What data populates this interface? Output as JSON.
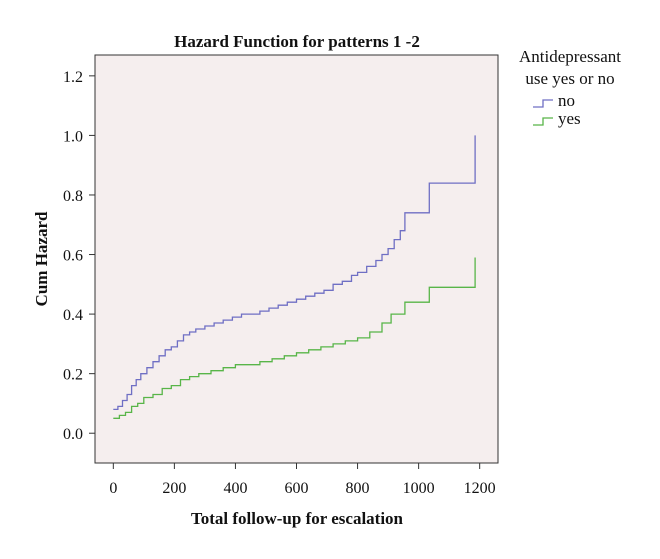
{
  "chart_data": {
    "type": "line",
    "title": "Hazard Function for patterns 1 -2",
    "xlabel": "Total follow-up for escalation",
    "ylabel": "Cum Hazard",
    "xlim": [
      -60,
      1260
    ],
    "ylim": [
      -0.1,
      1.27
    ],
    "xticks": [
      0,
      200,
      400,
      600,
      800,
      1000,
      1200
    ],
    "yticks": [
      0.0,
      0.2,
      0.4,
      0.6,
      0.8,
      1.0,
      1.2
    ],
    "xtick_labels": [
      "0",
      "200",
      "400",
      "600",
      "800",
      "1000",
      "1200"
    ],
    "ytick_labels": [
      "0.0",
      "0.2",
      "0.4",
      "0.6",
      "0.8",
      "1.0",
      "1.2"
    ],
    "grid": false,
    "step": true,
    "plot_background": "#f5eeee",
    "legend": {
      "title_line1": "Antidepressant",
      "title_line2": "use yes or no",
      "placement": "right"
    },
    "series": [
      {
        "name": "no",
        "color": "#6f6fc4",
        "x": [
          0,
          15,
          30,
          45,
          60,
          75,
          90,
          110,
          130,
          150,
          170,
          190,
          210,
          230,
          250,
          270,
          300,
          330,
          360,
          390,
          420,
          450,
          480,
          510,
          540,
          570,
          600,
          630,
          660,
          690,
          720,
          750,
          780,
          800,
          830,
          860,
          880,
          900,
          920,
          940,
          955,
          1035,
          1185
        ],
        "y": [
          0.08,
          0.09,
          0.11,
          0.13,
          0.16,
          0.18,
          0.2,
          0.22,
          0.24,
          0.26,
          0.28,
          0.29,
          0.31,
          0.33,
          0.34,
          0.35,
          0.36,
          0.37,
          0.38,
          0.39,
          0.4,
          0.4,
          0.41,
          0.42,
          0.43,
          0.44,
          0.45,
          0.46,
          0.47,
          0.48,
          0.5,
          0.51,
          0.53,
          0.54,
          0.56,
          0.58,
          0.6,
          0.62,
          0.65,
          0.68,
          0.74,
          0.84,
          1.0
        ]
      },
      {
        "name": "yes",
        "color": "#58b548",
        "x": [
          0,
          20,
          40,
          60,
          80,
          100,
          130,
          160,
          190,
          220,
          250,
          280,
          320,
          360,
          400,
          440,
          480,
          520,
          560,
          600,
          640,
          680,
          720,
          760,
          800,
          840,
          880,
          910,
          955,
          1035,
          1185
        ],
        "y": [
          0.05,
          0.06,
          0.07,
          0.09,
          0.1,
          0.12,
          0.13,
          0.15,
          0.16,
          0.18,
          0.19,
          0.2,
          0.21,
          0.22,
          0.23,
          0.23,
          0.24,
          0.25,
          0.26,
          0.27,
          0.28,
          0.29,
          0.3,
          0.31,
          0.32,
          0.34,
          0.37,
          0.4,
          0.44,
          0.49,
          0.59
        ]
      }
    ]
  }
}
